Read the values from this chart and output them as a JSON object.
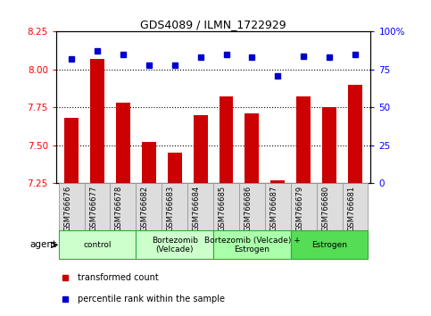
{
  "title": "GDS4089 / ILMN_1722929",
  "samples": [
    "GSM766676",
    "GSM766677",
    "GSM766678",
    "GSM766682",
    "GSM766683",
    "GSM766684",
    "GSM766685",
    "GSM766686",
    "GSM766687",
    "GSM766679",
    "GSM766680",
    "GSM766681"
  ],
  "red_values": [
    7.68,
    8.07,
    7.78,
    7.52,
    7.45,
    7.7,
    7.82,
    7.71,
    7.27,
    7.82,
    7.75,
    7.9
  ],
  "blue_values": [
    82,
    87,
    85,
    78,
    78,
    83,
    85,
    83,
    71,
    84,
    83,
    85
  ],
  "ylim_left": [
    7.25,
    8.25
  ],
  "ylim_right": [
    0,
    100
  ],
  "yticks_left": [
    7.25,
    7.5,
    7.75,
    8.0,
    8.25
  ],
  "yticks_right": [
    0,
    25,
    50,
    75,
    100
  ],
  "ytick_labels_right": [
    "0",
    "25",
    "50",
    "75",
    "100%"
  ],
  "grid_lines": [
    7.5,
    7.75,
    8.0
  ],
  "bar_color": "#cc0000",
  "dot_color": "#0000cc",
  "groups": [
    {
      "label": "control",
      "start": 0,
      "end": 3,
      "color": "#ccffcc"
    },
    {
      "label": "Bortezomib\n(Velcade)",
      "start": 3,
      "end": 6,
      "color": "#ccffcc"
    },
    {
      "label": "Bortezomib (Velcade) +\nEstrogen",
      "start": 6,
      "end": 9,
      "color": "#99ff99"
    },
    {
      "label": "Estrogen",
      "start": 9,
      "end": 12,
      "color": "#66ee66"
    }
  ],
  "group_fill_colors": [
    "#ccffcc",
    "#ccffcc",
    "#aaffaa",
    "#55dd55"
  ],
  "agent_label": "agent",
  "legend_red": "transformed count",
  "legend_blue": "percentile rank within the sample",
  "bar_width": 0.55,
  "ybase": 7.25
}
